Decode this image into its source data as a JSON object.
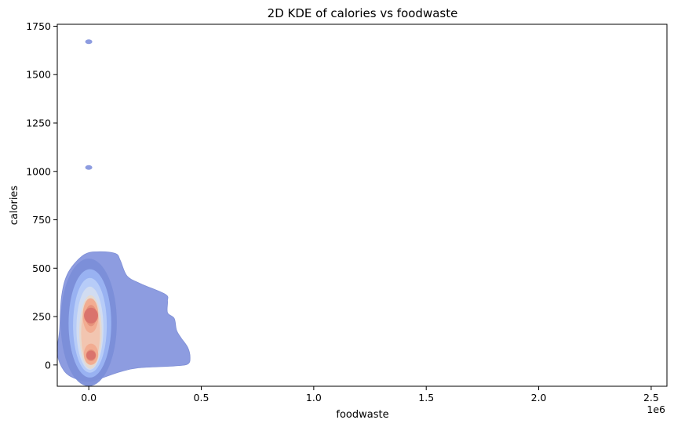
{
  "chart_data": {
    "type": "kde",
    "title": "2D KDE of calories vs foodwaste",
    "xlabel": "foodwaste",
    "ylabel": "calories",
    "x_offset_label": "1e6",
    "xlim": [
      -0.14,
      2.57
    ],
    "ylim": [
      -110,
      1760
    ],
    "x_ticks": [
      0.0,
      0.5,
      1.0,
      1.5,
      2.0,
      2.5
    ],
    "x_tick_labels": [
      "0.0",
      "0.5",
      "1.0",
      "1.5",
      "2.0",
      "2.5"
    ],
    "y_ticks": [
      0,
      250,
      500,
      750,
      1000,
      1250,
      1500,
      1750
    ],
    "y_tick_labels": [
      "0",
      "250",
      "500",
      "750",
      "1000",
      "1250",
      "1500",
      "1750"
    ],
    "colormap": "coolwarm",
    "grid": false,
    "density_peaks": [
      {
        "x": 0.01,
        "y": 255
      },
      {
        "x": 0.01,
        "y": 50
      }
    ],
    "outer_contour": [
      [
        -0.13,
        180
      ],
      [
        -0.12,
        360
      ],
      [
        -0.09,
        480
      ],
      [
        -0.02,
        570
      ],
      [
        0.05,
        585
      ],
      [
        0.12,
        575
      ],
      [
        0.14,
        540
      ],
      [
        0.17,
        460
      ],
      [
        0.23,
        420
      ],
      [
        0.34,
        365
      ],
      [
        0.35,
        330
      ],
      [
        0.35,
        270
      ],
      [
        0.38,
        240
      ],
      [
        0.39,
        180
      ],
      [
        0.41,
        140
      ],
      [
        0.44,
        90
      ],
      [
        0.45,
        40
      ],
      [
        0.44,
        5
      ],
      [
        0.38,
        -5
      ],
      [
        0.22,
        -15
      ],
      [
        0.14,
        -35
      ],
      [
        0.05,
        -70
      ],
      [
        0.0,
        -85
      ],
      [
        -0.06,
        -70
      ],
      [
        -0.11,
        -30
      ],
      [
        -0.14,
        60
      ]
    ],
    "isolated_blobs": [
      {
        "x": 0.0,
        "y": 1670
      },
      {
        "x": 0.0,
        "y": 1020
      }
    ],
    "contour_levels": [
      {
        "color": "#7b8ed8",
        "rx": 0.125,
        "ry": 330,
        "cx": 0.0,
        "cy": 220
      },
      {
        "color": "#9bb4f3",
        "rx": 0.095,
        "ry": 280,
        "cx": 0.005,
        "cy": 215
      },
      {
        "color": "#b8cdf8",
        "rx": 0.075,
        "ry": 245,
        "cx": 0.005,
        "cy": 205
      },
      {
        "color": "#d2dcf0",
        "rx": 0.06,
        "ry": 215,
        "cx": 0.005,
        "cy": 190
      },
      {
        "color": "#e6d8cc",
        "rx": 0.05,
        "ry": 190,
        "cx": 0.008,
        "cy": 170
      },
      {
        "color": "#f2c4ae",
        "rx": 0.042,
        "ry": 165,
        "cx": 0.008,
        "cy": 165
      },
      {
        "color": "#f1ab8f",
        "rx": 0.035,
        "ry": 90,
        "cx": 0.008,
        "cy": 255
      },
      {
        "color": "#e5907a",
        "rx": 0.025,
        "ry": 55,
        "cx": 0.01,
        "cy": 255
      },
      {
        "color": "#f1ab8f",
        "rx": 0.032,
        "ry": 55,
        "cx": 0.01,
        "cy": 55
      },
      {
        "color": "#e5907a",
        "rx": 0.022,
        "ry": 30,
        "cx": 0.01,
        "cy": 50
      }
    ],
    "outer_color": "#8d9ce0"
  }
}
